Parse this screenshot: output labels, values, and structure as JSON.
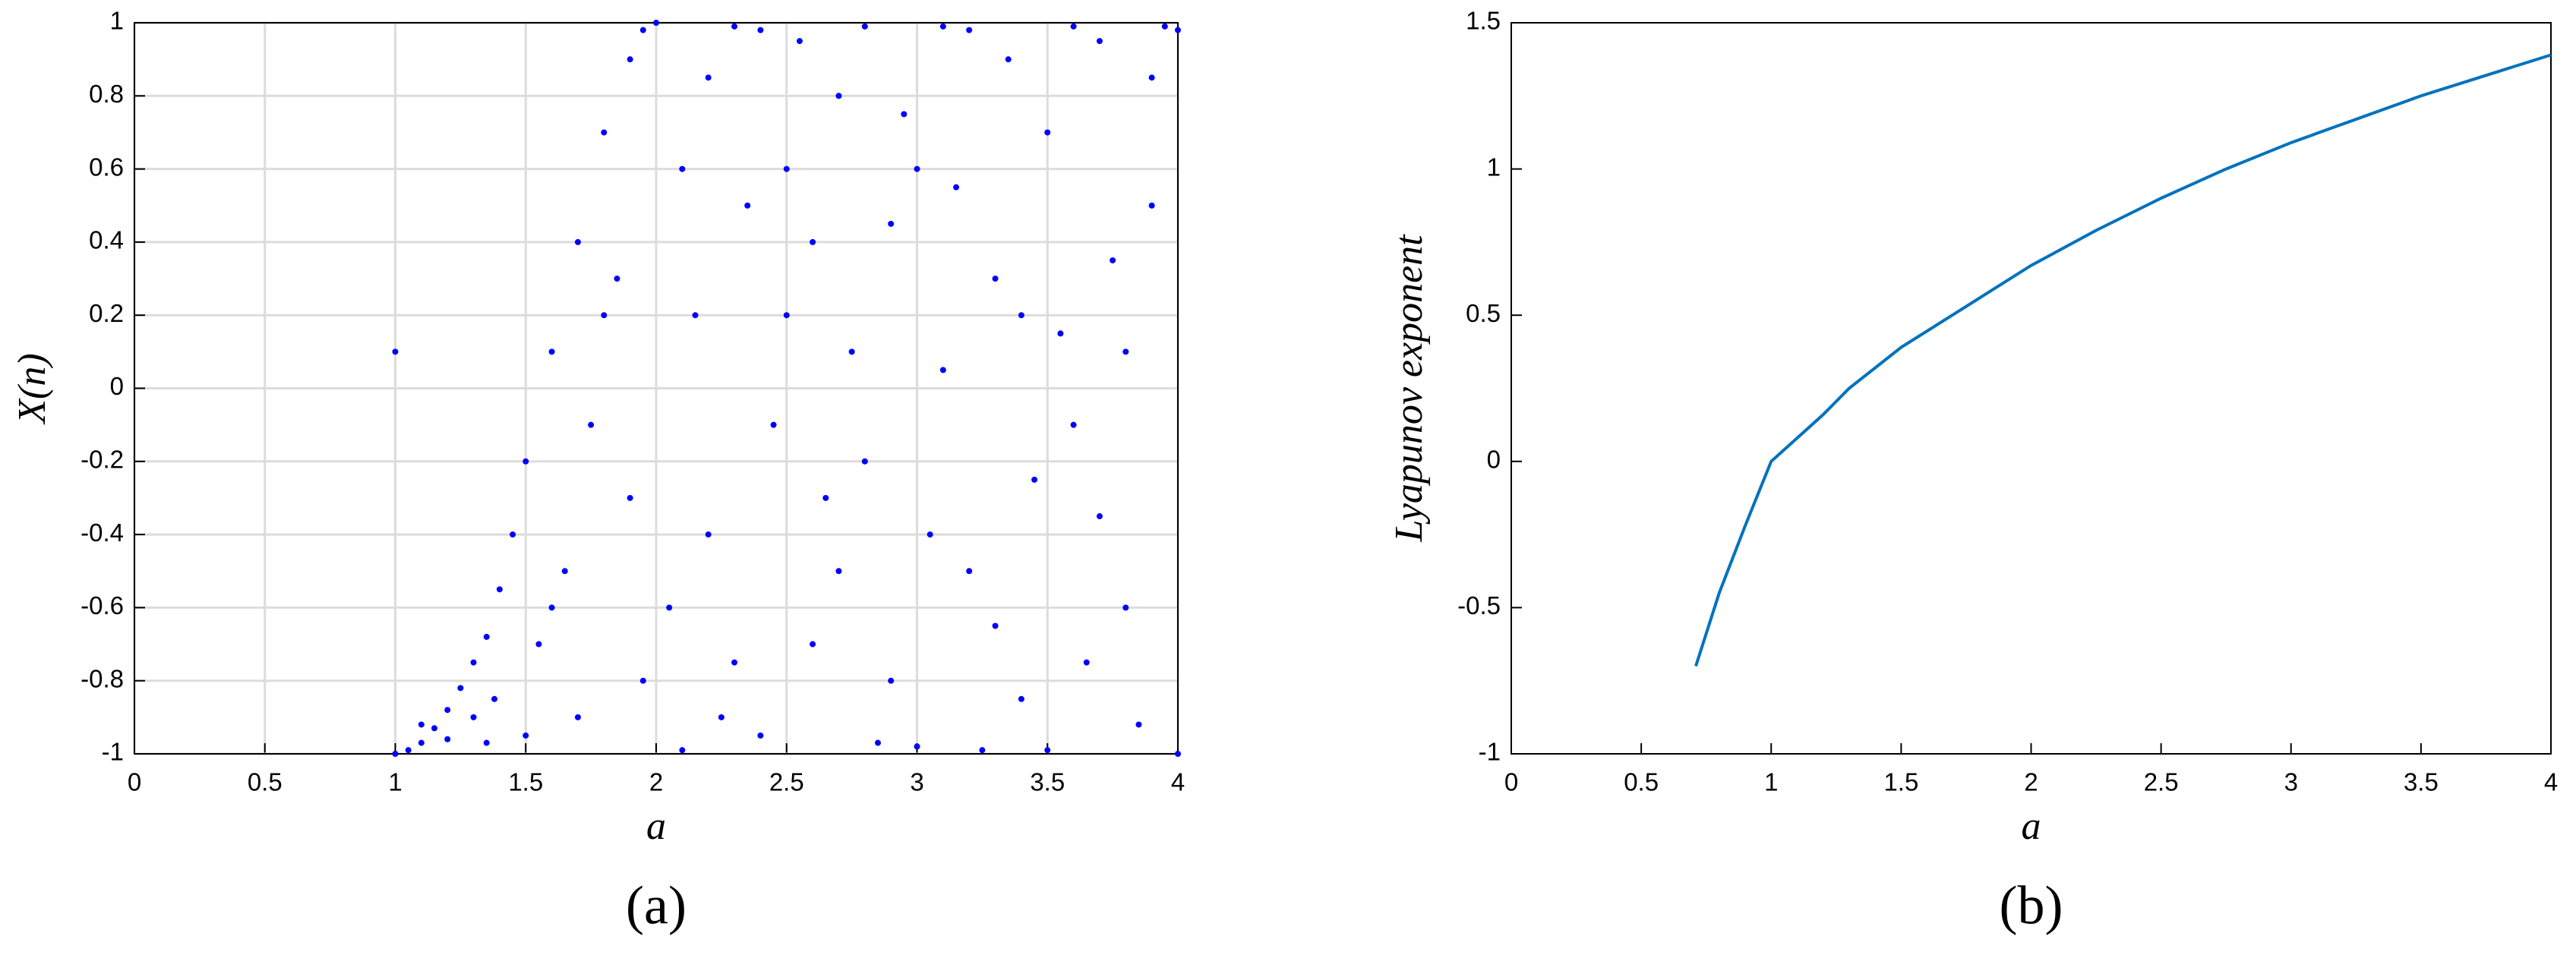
{
  "chart_data": [
    {
      "type": "scatter",
      "x_label": "a",
      "y_label": "X(n)",
      "caption": "(a)",
      "color": "#0000ff",
      "grid": true,
      "xlim": [
        0,
        4
      ],
      "ylim": [
        -1,
        1
      ],
      "xticks": [
        0,
        0.5,
        1,
        1.5,
        2,
        2.5,
        3,
        3.5,
        4
      ],
      "yticks": [
        -1,
        -0.8,
        -0.6,
        -0.4,
        -0.2,
        0,
        0.2,
        0.4,
        0.6,
        0.8,
        1
      ],
      "x": [
        1,
        1,
        1.05,
        1.1,
        1.15,
        1.2,
        1.25,
        1.3,
        1.35,
        1.4,
        1.1,
        1.2,
        1.3,
        1.35,
        1.38,
        1.45,
        1.5,
        1.55,
        1.6,
        1.65,
        1.7,
        1.75,
        1.8,
        1.85,
        1.9,
        1.95,
        1.5,
        1.6,
        1.7,
        1.8,
        1.9,
        1.95,
        2,
        2.1,
        2.2,
        2.3,
        2.4,
        2.5,
        2.6,
        2.7,
        2.8,
        2.9,
        3,
        3.1,
        3.2,
        3.3,
        3.4,
        3.5,
        3.6,
        3.7,
        3.8,
        3.9,
        4,
        2.05,
        2.15,
        2.25,
        2.35,
        2.45,
        2.55,
        2.65,
        2.75,
        2.85,
        2.95,
        3.05,
        3.15,
        3.25,
        3.35,
        3.45,
        3.55,
        3.65,
        3.75,
        3.85,
        3.95,
        2.1,
        2.3,
        2.5,
        2.7,
        2.9,
        3.1,
        3.3,
        3.5,
        3.7,
        3.9,
        2.2,
        2.6,
        3,
        3.4,
        3.8,
        4,
        2.4,
        2.8,
        3.2,
        3.6
      ],
      "values": [
        0.1,
        -1,
        -0.99,
        -0.97,
        -0.93,
        -0.88,
        -0.82,
        -0.75,
        -0.68,
        -0.55,
        -0.92,
        -0.96,
        -0.9,
        -0.97,
        -0.85,
        -0.4,
        -0.2,
        -0.7,
        0.1,
        -0.5,
        0.4,
        -0.1,
        0.7,
        0.3,
        0.9,
        -0.8,
        -0.95,
        -0.6,
        -0.9,
        0.2,
        -0.3,
        0.98,
        1,
        0.6,
        -0.4,
        0.99,
        -0.95,
        0.2,
        -0.7,
        0.8,
        -0.2,
        0.45,
        -0.98,
        0.99,
        -0.5,
        0.3,
        -0.85,
        0.7,
        -0.1,
        0.95,
        -0.6,
        0.5,
        -1,
        -0.6,
        0.2,
        -0.9,
        0.5,
        -0.1,
        0.95,
        -0.3,
        0.1,
        -0.97,
        0.75,
        -0.4,
        0.55,
        -0.99,
        0.9,
        -0.25,
        0.15,
        -0.75,
        0.35,
        -0.92,
        0.99,
        -0.99,
        -0.75,
        0.6,
        -0.5,
        -0.8,
        0.05,
        -0.65,
        -0.99,
        -0.35,
        0.85,
        0.85,
        0.4,
        0.6,
        0.2,
        0.1,
        0.98,
        0.98,
        0.99,
        0.98,
        0.99
      ]
    },
    {
      "type": "line",
      "x_label": "a",
      "y_label": "Lyapunov exponent",
      "caption": "(b)",
      "color": "#0072bd",
      "grid": false,
      "xlim": [
        0,
        4
      ],
      "ylim": [
        -1,
        1.5
      ],
      "xticks": [
        0,
        0.5,
        1,
        1.5,
        2,
        2.5,
        3,
        3.5,
        4
      ],
      "yticks": [
        -1,
        -0.5,
        0,
        0.5,
        1,
        1.5
      ],
      "x": [
        0.71,
        0.8,
        0.9,
        1,
        1.1,
        1.2,
        1.3,
        1.4,
        1.5,
        1.75,
        2,
        2.25,
        2.5,
        2.75,
        3,
        3.25,
        3.5,
        3.75,
        4
      ],
      "values": [
        -0.7,
        -0.45,
        -0.22,
        0,
        0.08,
        0.16,
        0.25,
        0.32,
        0.39,
        0.53,
        0.67,
        0.79,
        0.9,
        1,
        1.09,
        1.17,
        1.25,
        1.32,
        1.39
      ]
    }
  ]
}
